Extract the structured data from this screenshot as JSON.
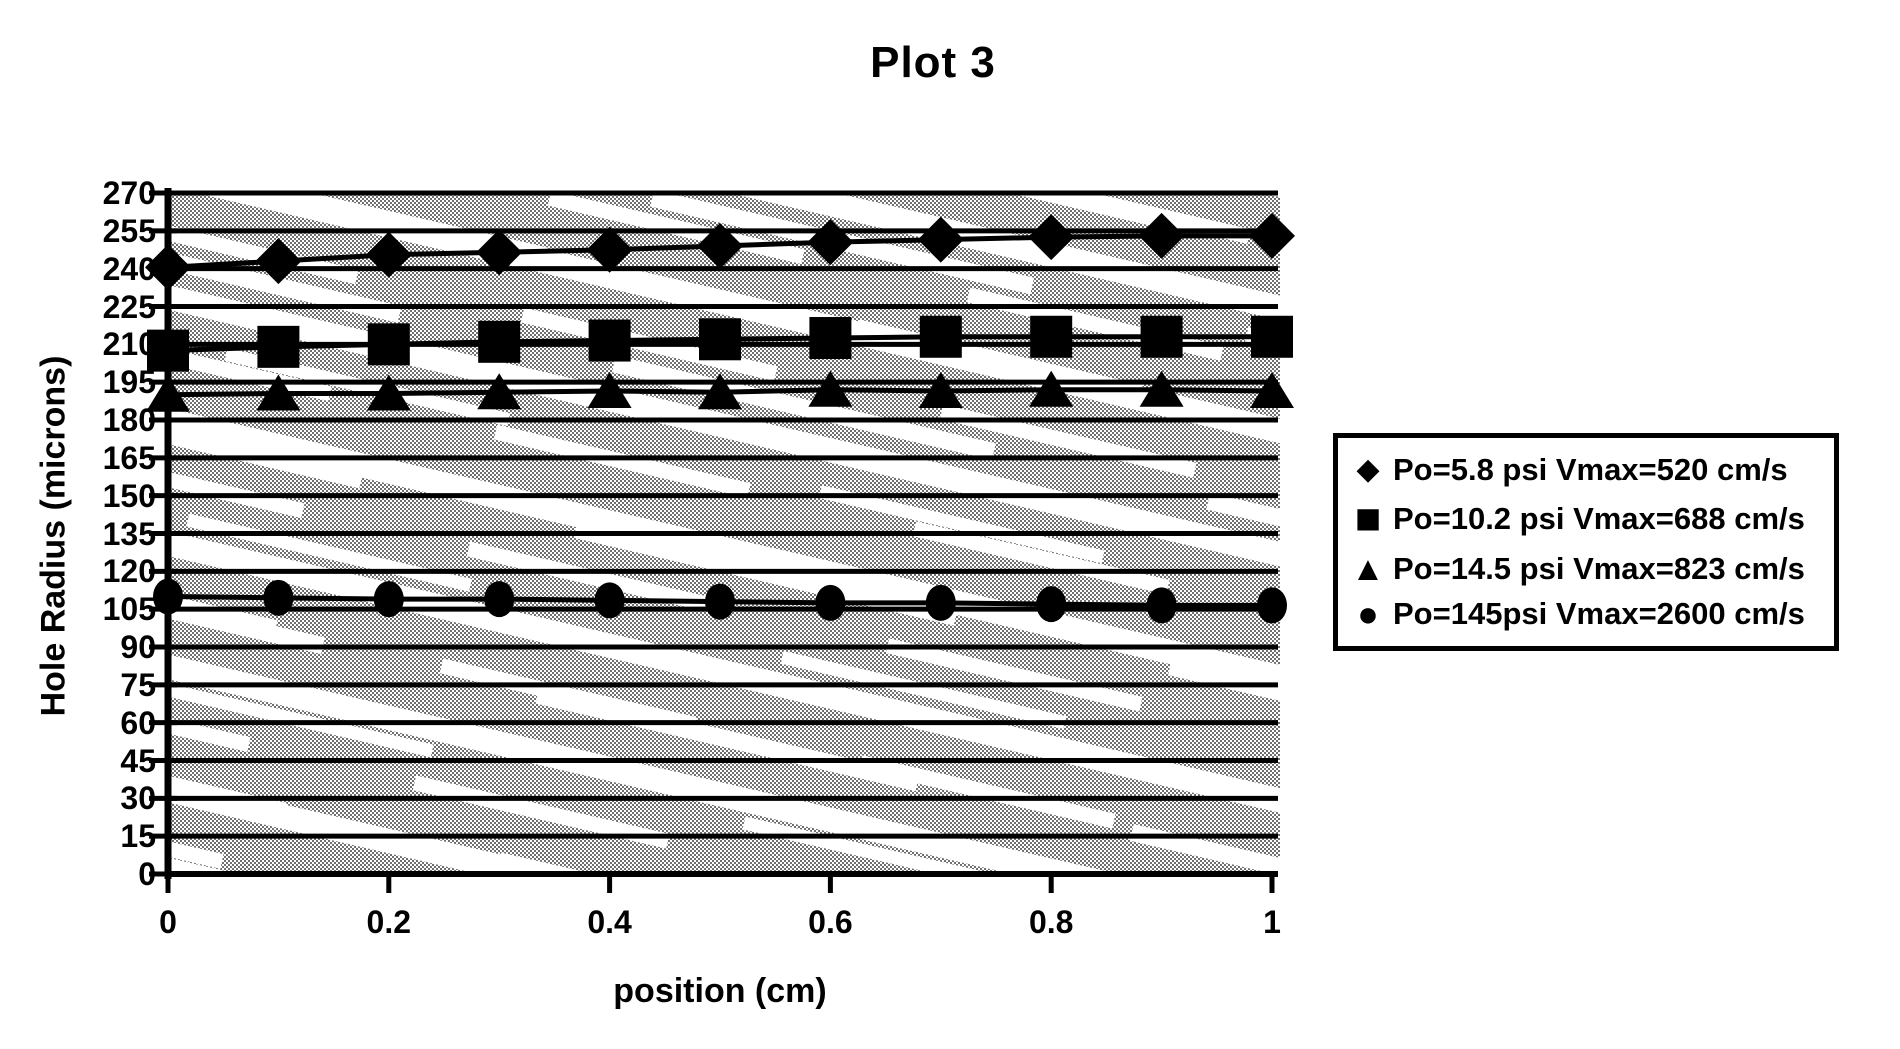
{
  "title": "Plot 3",
  "chart_data": {
    "type": "line",
    "title": "Plot 3",
    "xlabel": "position (cm)",
    "ylabel": "Hole Radius (microns)",
    "xlim": [
      0,
      1
    ],
    "ylim": [
      0,
      270
    ],
    "grid": "horizontal gridlines every 15, thick black, over gray halftone scan texture",
    "legend_position": "right",
    "marker_color": "#000000",
    "x": [
      0,
      0.1,
      0.2,
      0.3,
      0.4,
      0.5,
      0.6,
      0.7,
      0.8,
      0.9,
      1
    ],
    "xticks": {
      "values": [
        0,
        0.2,
        0.4,
        0.6,
        0.8,
        1
      ],
      "labels": [
        "0",
        "0.2",
        "0.4",
        "0.6",
        "0.8",
        "1"
      ]
    },
    "yticks": {
      "labels": [
        "270",
        "255",
        "240",
        "225",
        "210",
        "195",
        "180",
        "165",
        "150",
        "135",
        "120",
        "105",
        "90",
        "75",
        "60",
        "45",
        "30",
        "15",
        "0"
      ]
    },
    "series": [
      {
        "name": "Po=5.8 psi Vmax=520 cm/s",
        "marker": "diamond",
        "values": [
          240.5,
          243,
          245.5,
          246.5,
          247.5,
          249,
          250.5,
          251.5,
          252.5,
          253,
          253
        ]
      },
      {
        "name": "Po=10.2 psi Vmax=688 cm/s",
        "marker": "square",
        "values": [
          207.5,
          209,
          210,
          211,
          211.5,
          212,
          212.5,
          213,
          213,
          213,
          213
        ]
      },
      {
        "name": "Po=14.5 psi Vmax=823 cm/s",
        "marker": "triangle",
        "values": [
          190,
          190.5,
          190.5,
          191,
          191.5,
          191,
          192,
          191.5,
          192,
          192,
          191.5
        ]
      },
      {
        "name": "Po=145psi Vmax=2600 cm/s",
        "marker": "circle",
        "values": [
          110,
          109.5,
          109,
          109,
          108.5,
          108,
          107.5,
          107.5,
          107,
          106.5,
          106.5
        ]
      }
    ]
  },
  "colors": {
    "ink": "#000000",
    "paper": "#ffffff",
    "halftone_gray": "#6f6f6f"
  }
}
